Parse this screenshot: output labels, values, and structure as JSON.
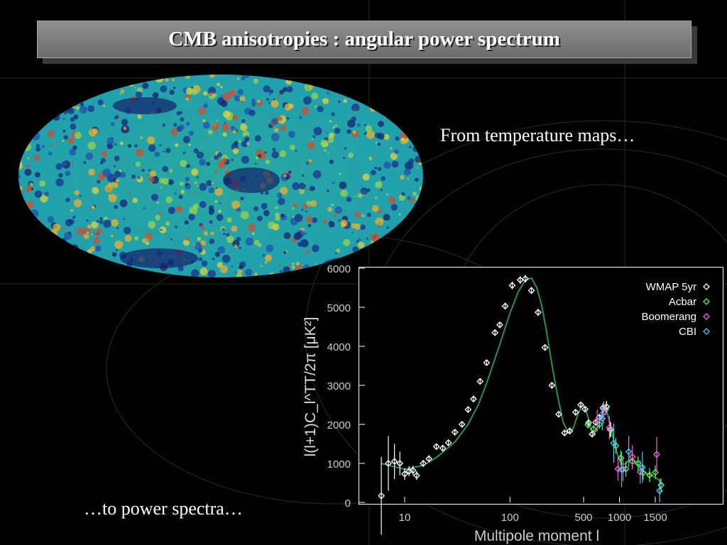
{
  "slide": {
    "title": "CMB anisotropies : angular power spectrum",
    "caption_top": "From temperature maps…",
    "caption_bottom": "…to power spectra…"
  },
  "colors": {
    "wmap": "#ffffff",
    "acbar": "#66ee66",
    "boomerang": "#ee66dd",
    "cbi": "#44ccee",
    "model": "#2f8f4f"
  },
  "chart_data": {
    "type": "scatter",
    "xlabel": "Multipole moment  l",
    "ylabel": "l(l+1)C_l^TT/2π [μK²]",
    "x_scale": "log (low multipoles) / linear (high multipoles)",
    "ylim": [
      0,
      6000
    ],
    "y_ticks": [
      "0",
      "1000",
      "2000",
      "3000",
      "4000",
      "5000",
      "6000"
    ],
    "x_ticks": [
      "10",
      "100",
      "500",
      "1000",
      "1500"
    ],
    "legend_position": "top-right",
    "series": [
      {
        "name": "WMAP 5yr",
        "points": [
          [
            6,
            170,
            1000
          ],
          [
            7,
            1000,
            700
          ],
          [
            8,
            1050,
            450
          ],
          [
            9,
            1000,
            300
          ],
          [
            10,
            730,
            150
          ],
          [
            11,
            800,
            130
          ],
          [
            12,
            820,
            120
          ],
          [
            13,
            690,
            110
          ],
          [
            15,
            1000,
            90
          ],
          [
            17,
            1120,
            90
          ],
          [
            20,
            1430,
            80
          ],
          [
            23,
            1390,
            80
          ],
          [
            26,
            1530,
            80
          ],
          [
            30,
            1800,
            80
          ],
          [
            35,
            2000,
            80
          ],
          [
            40,
            2380,
            80
          ],
          [
            45,
            2650,
            80
          ],
          [
            52,
            3100,
            80
          ],
          [
            60,
            3580,
            80
          ],
          [
            72,
            4350,
            80
          ],
          [
            80,
            4550,
            80
          ],
          [
            90,
            5030,
            80
          ],
          [
            105,
            5560,
            100
          ],
          [
            125,
            5700,
            100
          ],
          [
            140,
            5730,
            100
          ],
          [
            160,
            5430,
            90
          ],
          [
            185,
            4870,
            90
          ],
          [
            215,
            3970,
            80
          ],
          [
            250,
            3000,
            80
          ],
          [
            290,
            2260,
            70
          ],
          [
            330,
            1780,
            60
          ],
          [
            370,
            1830,
            60
          ],
          [
            420,
            2310,
            60
          ],
          [
            470,
            2500,
            60
          ],
          [
            520,
            2390,
            60
          ],
          [
            570,
            2040,
            70
          ],
          [
            620,
            1750,
            70
          ],
          [
            670,
            2050,
            80
          ],
          [
            720,
            2180,
            90
          ],
          [
            770,
            2420,
            120
          ],
          [
            820,
            2450,
            150
          ],
          [
            870,
            1870,
            200
          ]
        ]
      },
      {
        "name": "Acbar",
        "points": [
          [
            560,
            1990,
            100
          ],
          [
            640,
            1880,
            100
          ],
          [
            720,
            2000,
            120
          ],
          [
            810,
            2390,
            150
          ],
          [
            880,
            1860,
            180
          ],
          [
            950,
            1450,
            200
          ],
          [
            1020,
            1140,
            200
          ],
          [
            1090,
            860,
            200
          ],
          [
            1180,
            1050,
            200
          ],
          [
            1260,
            1000,
            180
          ],
          [
            1330,
            760,
            180
          ],
          [
            1420,
            700,
            180
          ],
          [
            1500,
            770,
            180
          ],
          [
            1580,
            440,
            180
          ]
        ]
      },
      {
        "name": "Boomerang",
        "points": [
          [
            690,
            2100,
            280
          ],
          [
            780,
            2300,
            290
          ],
          [
            860,
            1920,
            300
          ],
          [
            980,
            860,
            300
          ],
          [
            1050,
            850,
            300
          ],
          [
            1180,
            1170,
            300
          ],
          [
            1290,
            780,
            300
          ],
          [
            1520,
            1230,
            450
          ]
        ]
      },
      {
        "name": "CBI",
        "points": [
          [
            760,
            2150,
            300
          ],
          [
            920,
            1520,
            500
          ],
          [
            1030,
            840,
            450
          ],
          [
            1130,
            1300,
            400
          ],
          [
            1320,
            900,
            400
          ],
          [
            1560,
            300,
            300
          ]
        ]
      }
    ],
    "model_curve": [
      [
        6,
        1000
      ],
      [
        10,
        850
      ],
      [
        15,
        950
      ],
      [
        20,
        1150
      ],
      [
        30,
        1550
      ],
      [
        40,
        2000
      ],
      [
        50,
        2500
      ],
      [
        60,
        3050
      ],
      [
        80,
        4050
      ],
      [
        100,
        4850
      ],
      [
        120,
        5400
      ],
      [
        140,
        5700
      ],
      [
        160,
        5750
      ],
      [
        180,
        5500
      ],
      [
        200,
        5050
      ],
      [
        220,
        4450
      ],
      [
        250,
        3550
      ],
      [
        280,
        2800
      ],
      [
        320,
        2050
      ],
      [
        360,
        1780
      ],
      [
        400,
        1900
      ],
      [
        440,
        2250
      ],
      [
        480,
        2480
      ],
      [
        520,
        2450
      ],
      [
        560,
        2200
      ],
      [
        600,
        1880
      ],
      [
        640,
        1740
      ],
      [
        680,
        1850
      ],
      [
        730,
        2150
      ],
      [
        780,
        2380
      ],
      [
        820,
        2360
      ],
      [
        870,
        2000
      ],
      [
        920,
        1600
      ],
      [
        970,
        1250
      ],
      [
        1020,
        1000
      ],
      [
        1080,
        980
      ],
      [
        1140,
        1100
      ],
      [
        1200,
        1080
      ],
      [
        1260,
        950
      ],
      [
        1320,
        820
      ],
      [
        1380,
        740
      ],
      [
        1440,
        700
      ],
      [
        1500,
        640
      ],
      [
        1560,
        560
      ],
      [
        1620,
        440
      ]
    ]
  }
}
